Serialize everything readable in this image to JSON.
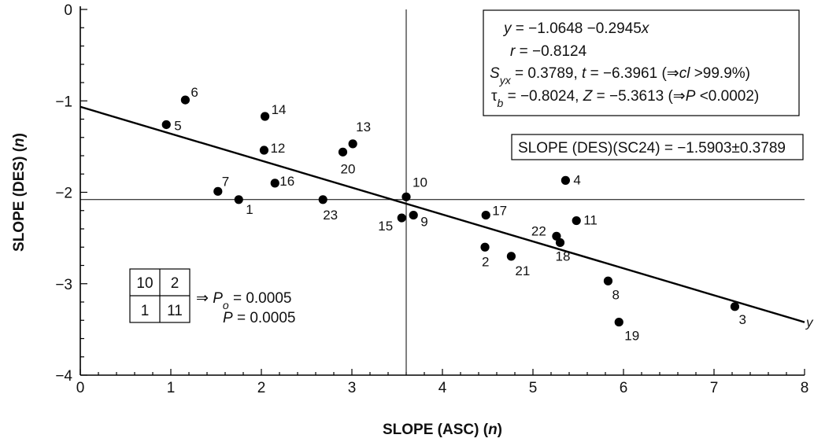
{
  "chart_data": {
    "type": "scatter",
    "xlabel": "SLOPE (ASC) (n)",
    "ylabel": "SLOPE (DES) (n)",
    "xlim": [
      0,
      8
    ],
    "ylim": [
      -4,
      0
    ],
    "xticks": [
      "0",
      "1",
      "2",
      "3",
      "4",
      "5",
      "6",
      "7",
      "8"
    ],
    "yticks": [
      "0",
      "−1",
      "−2",
      "−3",
      "−4"
    ],
    "points": [
      {
        "label": "1",
        "x": 1.75,
        "y": -2.08
      },
      {
        "label": "2",
        "x": 4.47,
        "y": -2.6
      },
      {
        "label": "3",
        "x": 7.23,
        "y": -3.25
      },
      {
        "label": "4",
        "x": 5.36,
        "y": -1.87
      },
      {
        "label": "5",
        "x": 0.95,
        "y": -1.26
      },
      {
        "label": "6",
        "x": 1.16,
        "y": -0.99
      },
      {
        "label": "7",
        "x": 1.52,
        "y": -1.99
      },
      {
        "label": "8",
        "x": 5.83,
        "y": -2.97
      },
      {
        "label": "9",
        "x": 3.68,
        "y": -2.25
      },
      {
        "label": "10",
        "x": 3.6,
        "y": -2.05
      },
      {
        "label": "11",
        "x": 5.48,
        "y": -2.31
      },
      {
        "label": "12",
        "x": 2.03,
        "y": -1.54
      },
      {
        "label": "13",
        "x": 3.01,
        "y": -1.47
      },
      {
        "label": "14",
        "x": 2.04,
        "y": -1.17
      },
      {
        "label": "15",
        "x": 3.55,
        "y": -2.28
      },
      {
        "label": "16",
        "x": 2.15,
        "y": -1.9
      },
      {
        "label": "17",
        "x": 4.48,
        "y": -2.25
      },
      {
        "label": "18",
        "x": 5.3,
        "y": -2.55
      },
      {
        "label": "19",
        "x": 5.95,
        "y": -3.42
      },
      {
        "label": "20",
        "x": 2.9,
        "y": -1.56
      },
      {
        "label": "21",
        "x": 4.76,
        "y": -2.7
      },
      {
        "label": "22",
        "x": 5.26,
        "y": -2.48
      },
      {
        "label": "23",
        "x": 2.68,
        "y": -2.08
      }
    ],
    "regression": {
      "intercept": -1.0648,
      "slope": -0.2945,
      "end_label": "y"
    },
    "reference_lines": {
      "vertical_x": 3.6,
      "horizontal_y": -2.08
    },
    "annotations": {
      "stats_box": {
        "line1": "y = −1.0648 −0.2945x",
        "line2": "r = −0.8124",
        "line3": "Syx = 0.3789, t = −6.3961 (⇒cl >99.9%)",
        "line4": "τb = −0.8024,  Z = −5.3613 (⇒P <0.0002)"
      },
      "slope_box": "SLOPE (DES)(SC24) = −1.5903±0.3789",
      "contingency": {
        "cells": [
          "10",
          "2",
          "1",
          "11"
        ],
        "po": "⇒ Po = 0.0005",
        "p": "P = 0.0005"
      }
    }
  }
}
